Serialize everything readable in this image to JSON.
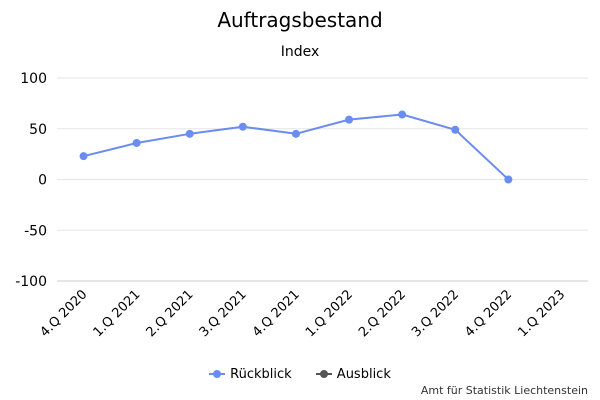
{
  "chart_data": {
    "type": "line",
    "title": "Auftragsbestand",
    "subtitle": "Index",
    "categories": [
      "4.Q 2020",
      "1.Q 2021",
      "2.Q 2021",
      "3.Q 2021",
      "4.Q 2021",
      "1.Q 2022",
      "2.Q 2022",
      "3.Q 2022",
      "4.Q 2022",
      "1.Q 2023"
    ],
    "series": [
      {
        "name": "Rückblick",
        "color": "#6b8cf0",
        "values": [
          23,
          36,
          45,
          52,
          45,
          59,
          64,
          49,
          0,
          null
        ]
      },
      {
        "name": "Ausblick",
        "color": "#555555",
        "values": [
          null,
          null,
          null,
          null,
          null,
          null,
          null,
          null,
          null,
          null
        ]
      }
    ],
    "yticks": [
      100,
      50,
      0,
      -50,
      -100
    ],
    "ylim": [
      -100,
      100
    ],
    "grid": true,
    "legend_position": "bottom"
  },
  "credits": "Amt für Statistik Liechtenstein"
}
